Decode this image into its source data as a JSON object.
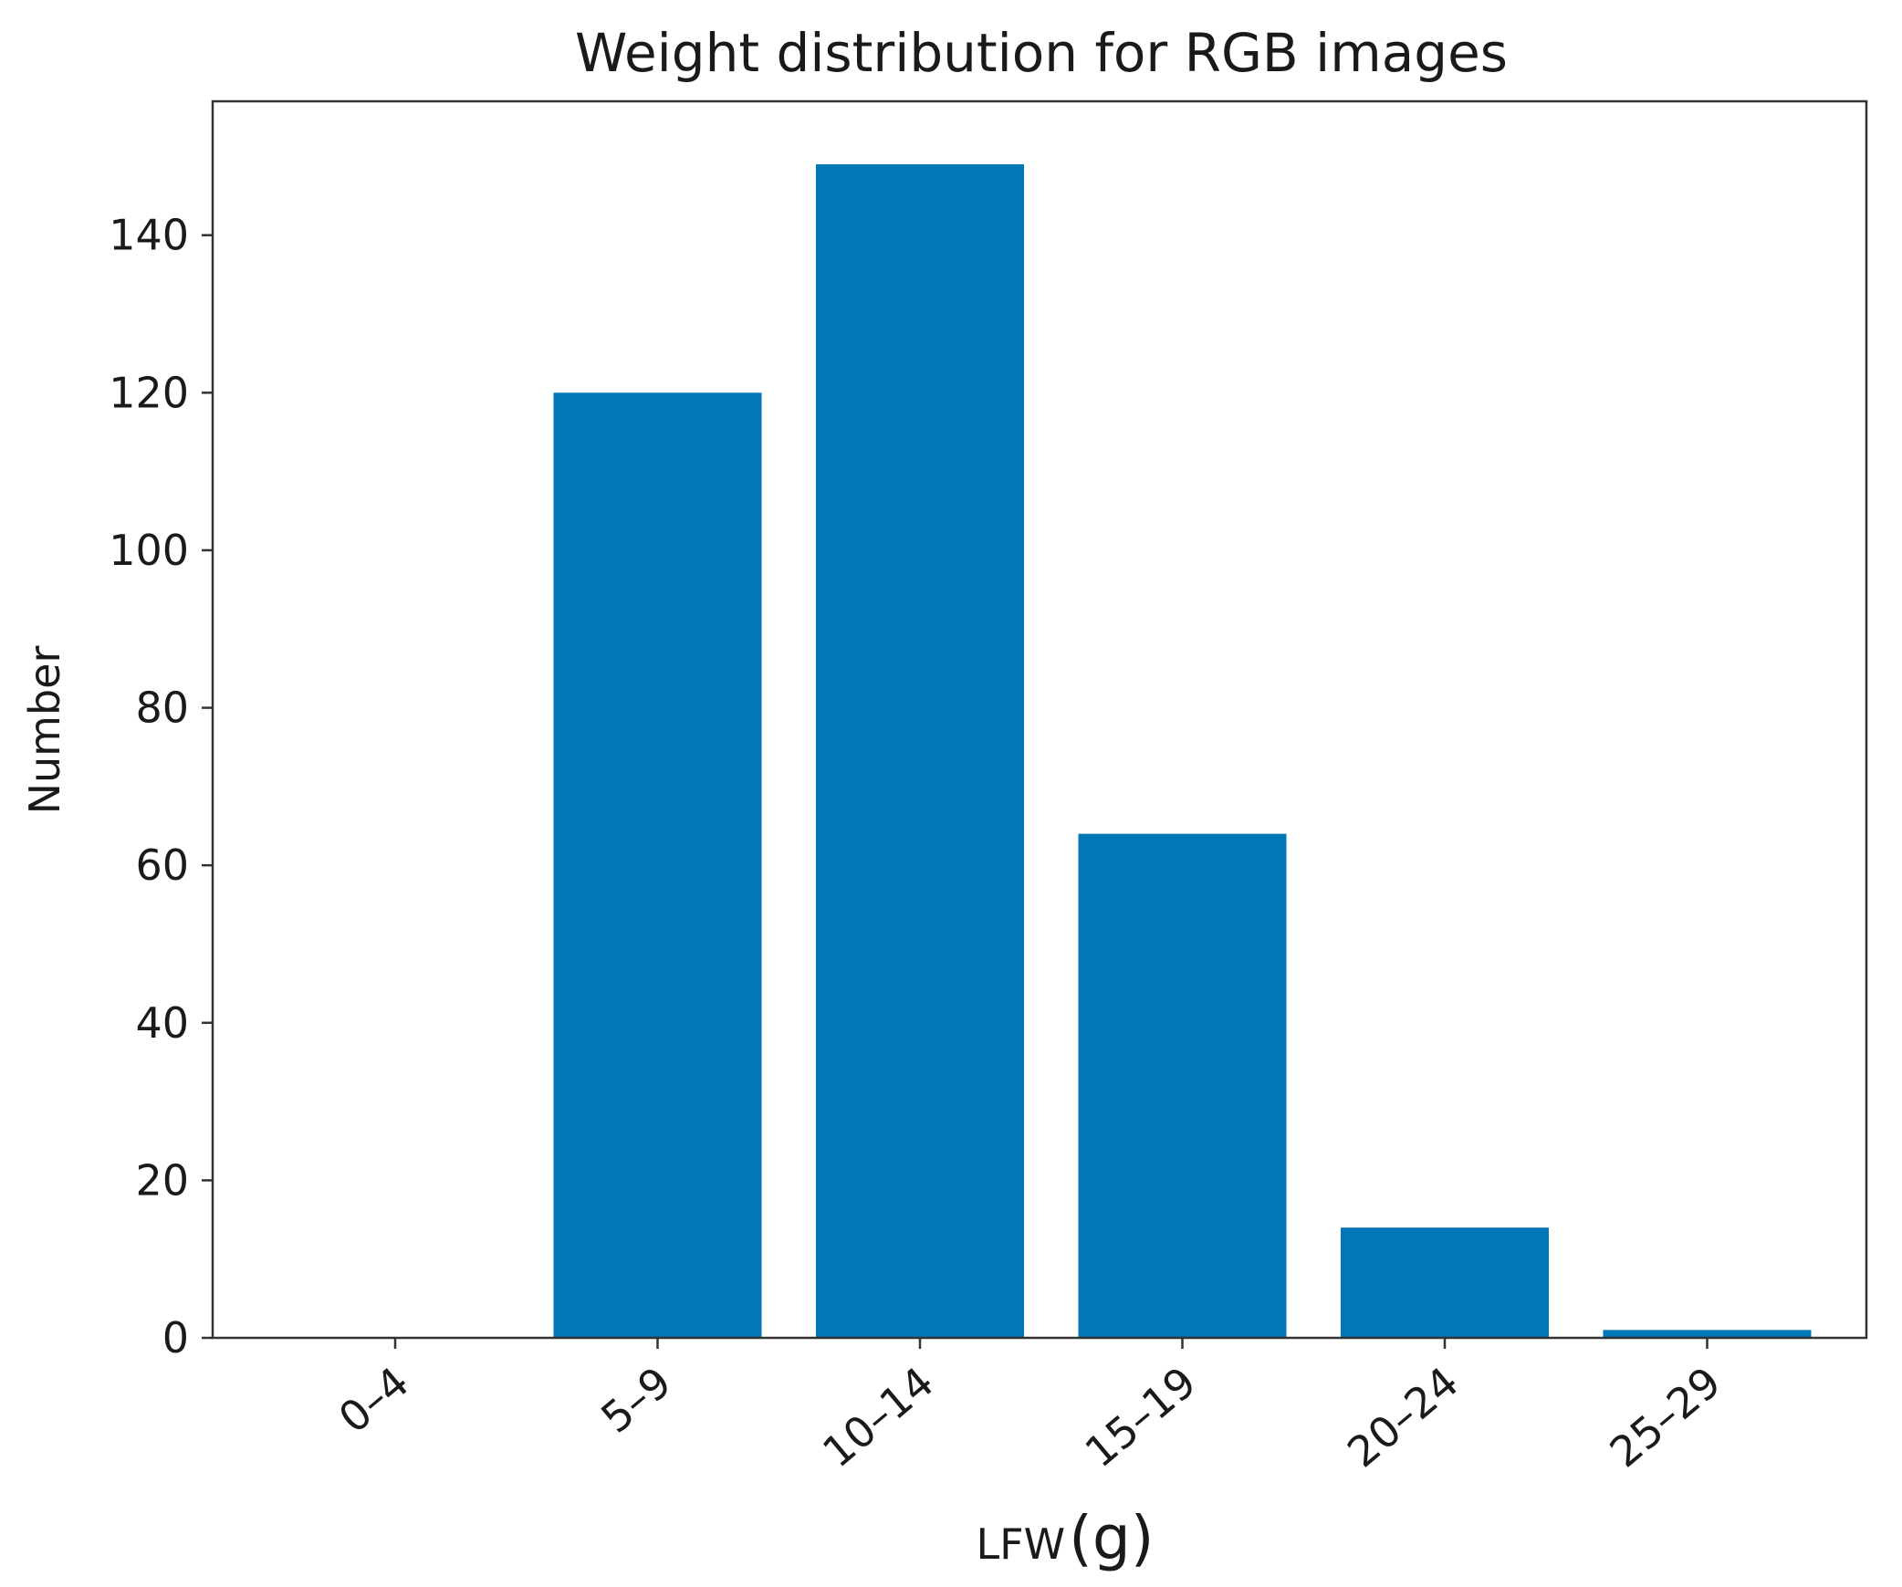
{
  "chart_data": {
    "type": "bar",
    "title": "Weight distribution for RGB images",
    "xlabel": "LFW",
    "xlabel_unit": "(g)",
    "ylabel": "Number",
    "categories": [
      "0–4",
      "5–9",
      "10–14",
      "15–19",
      "20–24",
      "25–29"
    ],
    "values": [
      0,
      120,
      149,
      64,
      14,
      1
    ],
    "ylim": [
      0,
      157
    ],
    "yticks": [
      0,
      20,
      40,
      60,
      80,
      100,
      120,
      140
    ],
    "bar_color": "#0077b6",
    "grid": false,
    "legend": "none"
  }
}
